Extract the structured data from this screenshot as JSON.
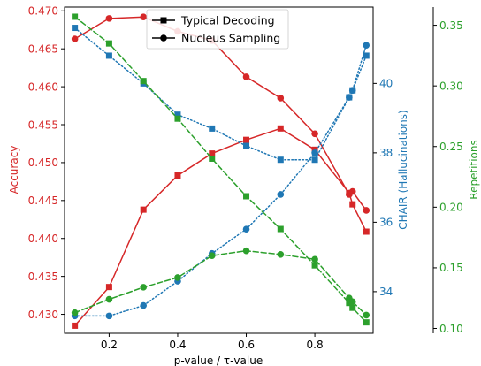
{
  "chart_data": {
    "type": "line",
    "xlabel": "p-value / τ-value",
    "ylabel_left": "Accuracy",
    "ylabel_mid": "CHAIR (Hallucinations)",
    "ylabel_right": "Repetitions",
    "xlim": [
      0.07,
      0.97
    ],
    "ylim_left": [
      0.4275,
      0.4705
    ],
    "ylim_mid": [
      32.8,
      42.2
    ],
    "ylim_right": [
      0.096,
      0.365
    ],
    "x_ticks": [
      0.2,
      0.4,
      0.6,
      0.8
    ],
    "y_ticks_left": [
      0.43,
      0.435,
      0.44,
      0.445,
      0.45,
      0.455,
      0.46,
      0.465,
      0.47
    ],
    "y_ticks_mid": [
      34,
      36,
      38,
      40
    ],
    "y_ticks_right": [
      0.1,
      0.15,
      0.2,
      0.25,
      0.3,
      0.35
    ],
    "legend_position": "top-center",
    "legend": [
      {
        "label": "Typical Decoding",
        "marker": "square"
      },
      {
        "label": "Nucleus Sampling",
        "marker": "circle"
      }
    ],
    "colors": {
      "accuracy": "#d62728",
      "chair": "#1f77b4",
      "repetitions": "#2ca02c",
      "legend": "#000000"
    },
    "x": [
      0.1,
      0.2,
      0.3,
      0.4,
      0.5,
      0.6,
      0.7,
      0.8,
      0.9,
      0.91,
      0.95
    ],
    "series": [
      {
        "metric": "accuracy",
        "axis": "left",
        "method": "typical",
        "marker": "square",
        "linestyle": "solid",
        "values": [
          0.4285,
          0.4336,
          0.4438,
          0.4483,
          0.4512,
          0.453,
          0.4545,
          0.4517,
          0.446,
          0.4445,
          0.4409
        ]
      },
      {
        "metric": "accuracy",
        "axis": "left",
        "method": "nucleus",
        "marker": "circle",
        "linestyle": "solid",
        "values": [
          0.4663,
          0.469,
          0.4692,
          0.4673,
          0.4661,
          0.4613,
          0.4585,
          0.4538,
          0.4458,
          0.4462,
          0.4437
        ]
      },
      {
        "metric": "chair",
        "axis": "mid",
        "method": "typical",
        "marker": "square",
        "linestyle": "dotted",
        "values": [
          41.6,
          40.8,
          40.0,
          39.1,
          38.7,
          38.2,
          37.8,
          37.8,
          39.6,
          39.8,
          40.8
        ]
      },
      {
        "metric": "chair",
        "axis": "mid",
        "method": "nucleus",
        "marker": "circle",
        "linestyle": "dotted",
        "values": [
          33.3,
          33.3,
          33.6,
          34.3,
          35.1,
          35.8,
          36.8,
          38.0,
          39.6,
          39.8,
          41.1
        ]
      },
      {
        "metric": "repetitions",
        "axis": "right",
        "method": "typical",
        "marker": "square",
        "linestyle": "dashed",
        "values": [
          0.357,
          0.335,
          0.304,
          0.273,
          0.24,
          0.209,
          0.182,
          0.152,
          0.121,
          0.117,
          0.105
        ]
      },
      {
        "metric": "repetitions",
        "axis": "right",
        "method": "nucleus",
        "marker": "circle",
        "linestyle": "dashed",
        "values": [
          0.113,
          0.124,
          0.134,
          0.142,
          0.16,
          0.164,
          0.161,
          0.157,
          0.125,
          0.122,
          0.111
        ]
      }
    ]
  }
}
